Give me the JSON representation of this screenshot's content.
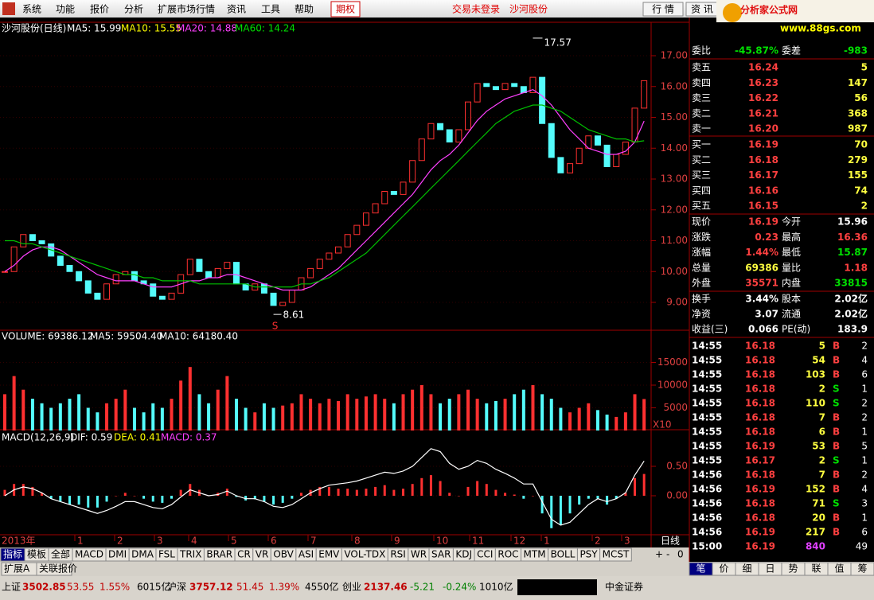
{
  "menu": {
    "items": [
      "系统",
      "功能",
      "报价",
      "分析",
      "扩展市场行情",
      "资讯",
      "工具",
      "帮助"
    ],
    "option": "期权",
    "login": "交易未登录",
    "stock": "沙河股份",
    "buttons": [
      "行 情",
      "资 讯"
    ],
    "logo": "分析家公式网",
    "site": "www.88gs.com"
  },
  "price_chart": {
    "type": "candlestick",
    "title": "沙河股份(日线)",
    "indicators": [
      "MA5: 15.99",
      "MA10: 15.55",
      "MA20: 14.88",
      "MA60: 14.24"
    ],
    "closes": [
      10.0,
      10.8,
      11.2,
      11.0,
      10.9,
      10.5,
      10.2,
      10.0,
      9.7,
      9.3,
      9.1,
      9.6,
      9.9,
      10.0,
      9.7,
      9.6,
      9.2,
      9.1,
      9.3,
      9.9,
      10.4,
      10.0,
      9.8,
      10.1,
      10.3,
      9.6,
      9.4,
      9.6,
      9.3,
      8.9,
      9.0,
      9.4,
      9.8,
      10.1,
      10.4,
      10.6,
      10.8,
      11.2,
      11.5,
      11.9,
      12.2,
      12.6,
      12.5,
      12.9,
      13.6,
      14.3,
      14.8,
      14.6,
      14.2,
      14.6,
      15.5,
      16.1,
      16.0,
      15.9,
      16.1,
      16.0,
      15.8,
      16.3,
      14.8,
      13.7,
      13.2,
      13.5,
      14.0,
      14.4,
      14.1,
      13.4,
      13.8,
      14.2,
      15.3,
      16.19
    ],
    "series": [
      {
        "color": "#ff40ff",
        "values": [
          10.0,
          10.2,
          10.5,
          10.7,
          10.8,
          10.8,
          10.7,
          10.5,
          10.3,
          10.1,
          9.9,
          9.8,
          9.7,
          9.7,
          9.7,
          9.6,
          9.5,
          9.5,
          9.5,
          9.6,
          9.7,
          9.7,
          9.8,
          9.8,
          9.9,
          9.9,
          9.8,
          9.7,
          9.6,
          9.5,
          9.4,
          9.4,
          9.4,
          9.5,
          9.7,
          9.9,
          10.1,
          10.4,
          10.7,
          11.0,
          11.3,
          11.6,
          11.9,
          12.2,
          12.5,
          12.9,
          13.3,
          13.6,
          13.8,
          14.1,
          14.5,
          14.9,
          15.2,
          15.4,
          15.6,
          15.7,
          15.8,
          15.9,
          15.7,
          15.4,
          15.0,
          14.6,
          14.3,
          14.0,
          13.9,
          13.8,
          13.8,
          13.9,
          14.2,
          14.88
        ]
      },
      {
        "color": "#00c000",
        "values": [
          11.0,
          11.0,
          10.9,
          10.9,
          10.8,
          10.7,
          10.6,
          10.5,
          10.4,
          10.3,
          10.2,
          10.1,
          10.0,
          9.9,
          9.9,
          9.8,
          9.8,
          9.7,
          9.7,
          9.7,
          9.7,
          9.6,
          9.6,
          9.6,
          9.6,
          9.6,
          9.6,
          9.5,
          9.5,
          9.5,
          9.5,
          9.5,
          9.6,
          9.6,
          9.7,
          9.8,
          10.0,
          10.2,
          10.4,
          10.6,
          10.9,
          11.2,
          11.5,
          11.8,
          12.1,
          12.4,
          12.7,
          13.0,
          13.3,
          13.6,
          13.9,
          14.2,
          14.5,
          14.8,
          15.0,
          15.2,
          15.3,
          15.4,
          15.4,
          15.3,
          15.2,
          15.0,
          14.8,
          14.6,
          14.5,
          14.4,
          14.3,
          14.3,
          14.2,
          14.24
        ]
      }
    ],
    "ylim": [
      8.0,
      18.0
    ],
    "yticks": [
      {
        "value": 9,
        "label": "9.00"
      },
      {
        "value": 10,
        "label": "10.00"
      },
      {
        "value": 11,
        "label": "11.00"
      },
      {
        "value": 12,
        "label": "12.00"
      },
      {
        "value": 13,
        "label": "13.00"
      },
      {
        "value": 14,
        "label": "14.00"
      },
      {
        "value": 15,
        "label": "15.00"
      },
      {
        "value": 16,
        "label": "16.00"
      },
      {
        "value": 17,
        "label": "17.00"
      }
    ],
    "high": 17.57,
    "low": 8.61,
    "signal": "S"
  },
  "volume_chart": {
    "type": "bar",
    "indicators": [
      "VOLUME: 69386.12",
      "MA5: 59504.40",
      "MA10: 64180.40"
    ],
    "values": [
      8000,
      12000,
      9000,
      7000,
      6000,
      5000,
      6000,
      7000,
      8000,
      5000,
      4000,
      6000,
      7000,
      9000,
      5000,
      4000,
      6000,
      5000,
      7000,
      11000,
      14000,
      8000,
      6000,
      9000,
      12000,
      7000,
      5000,
      4000,
      6000,
      5000,
      5500,
      6000,
      8000,
      7000,
      6000,
      7000,
      6500,
      8000,
      7000,
      7500,
      8000,
      7000,
      6000,
      8000,
      9000,
      10000,
      8000,
      6000,
      7000,
      8000,
      9000,
      7000,
      6000,
      6500,
      7000,
      8000,
      9000,
      10000,
      8000,
      7000,
      5000,
      4000,
      5000,
      6000,
      4500,
      3500,
      3000,
      4000,
      8000,
      6938.6
    ],
    "yticks": [
      5000,
      10000,
      15000
    ],
    "unit": "X10"
  },
  "macd_chart": {
    "type": "bar",
    "indicators": [
      "MACD(12,26,9)",
      "DIF: 0.59",
      "DEA: 0.41",
      "MACD: 0.37"
    ],
    "values": [
      0.1,
      0.2,
      0.2,
      0.15,
      0.05,
      -0.05,
      -0.1,
      -0.15,
      -0.15,
      -0.2,
      -0.2,
      -0.1,
      0,
      0.05,
      0,
      -0.05,
      -0.1,
      -0.12,
      -0.05,
      0.1,
      0.2,
      0.1,
      0,
      0.05,
      0.12,
      -0.02,
      -0.08,
      -0.06,
      -0.1,
      -0.15,
      -0.12,
      -0.05,
      0.05,
      0.1,
      0.15,
      0.15,
      0.12,
      0.12,
      0.1,
      0.12,
      0.15,
      0.18,
      0.1,
      0.12,
      0.2,
      0.3,
      0.35,
      0.25,
      0.05,
      0,
      0.15,
      0.25,
      0.2,
      0.1,
      0.05,
      0.02,
      -0.05,
      0,
      -0.3,
      -0.55,
      -0.5,
      -0.3,
      -0.15,
      -0.05,
      -0.05,
      -0.15,
      -0.05,
      0.05,
      0.3,
      0.37
    ],
    "dif": [
      0.0,
      0.1,
      0.15,
      0.12,
      0.05,
      -0.05,
      -0.1,
      -0.15,
      -0.2,
      -0.25,
      -0.3,
      -0.25,
      -0.18,
      -0.1,
      -0.1,
      -0.15,
      -0.2,
      -0.22,
      -0.15,
      -0.02,
      0.1,
      0.05,
      0,
      0.02,
      0.08,
      0,
      -0.05,
      -0.05,
      -0.1,
      -0.18,
      -0.2,
      -0.15,
      -0.05,
      0.05,
      0.12,
      0.18,
      0.2,
      0.22,
      0.25,
      0.3,
      0.35,
      0.4,
      0.38,
      0.42,
      0.5,
      0.65,
      0.8,
      0.75,
      0.55,
      0.45,
      0.5,
      0.6,
      0.55,
      0.45,
      0.38,
      0.3,
      0.2,
      0.2,
      -0.1,
      -0.4,
      -0.5,
      -0.45,
      -0.3,
      -0.15,
      -0.05,
      -0.1,
      -0.05,
      0.05,
      0.35,
      0.59
    ],
    "yticks": [
      {
        "value": 0,
        "label": "0.00"
      },
      {
        "value": 0.5,
        "label": "0.50"
      }
    ]
  },
  "x_axis": {
    "labels": [
      "2013年",
      "1",
      "2",
      "3",
      "4",
      "5",
      "6",
      "7",
      "8",
      "9",
      "10",
      "11",
      "12",
      "1",
      "2",
      "3"
    ],
    "period": "日线"
  },
  "tabs": [
    "指标",
    "模板",
    "全部",
    "MACD",
    "DMI",
    "DMA",
    "FSL",
    "TRIX",
    "BRAR",
    "CR",
    "VR",
    "OBV",
    "ASI",
    "EMV",
    "VOL-TDX",
    "RSI",
    "WR",
    "SAR",
    "KDJ",
    "CCI",
    "ROC",
    "MTM",
    "BOLL",
    "PSY",
    "MCST"
  ],
  "zoom": [
    "+",
    "-",
    "0"
  ],
  "bottom_tabs": [
    "扩展A",
    "关联报价"
  ],
  "quote": {
    "ratio": [
      "委比",
      "-45.87%",
      "委差",
      "-983"
    ],
    "sell": [
      [
        "卖五",
        "16.24",
        "5"
      ],
      [
        "卖四",
        "16.23",
        "147"
      ],
      [
        "卖三",
        "16.22",
        "56"
      ],
      [
        "卖二",
        "16.21",
        "368"
      ],
      [
        "卖一",
        "16.20",
        "987"
      ]
    ],
    "buy": [
      [
        "买一",
        "16.19",
        "70"
      ],
      [
        "买二",
        "16.18",
        "279"
      ],
      [
        "买三",
        "16.17",
        "155"
      ],
      [
        "买四",
        "16.16",
        "74"
      ],
      [
        "买五",
        "16.15",
        "2"
      ]
    ],
    "stats": [
      [
        "现价",
        "16.19",
        "今开",
        "15.96"
      ],
      [
        "涨跌",
        "0.23",
        "最高",
        "16.36"
      ],
      [
        "涨幅",
        "1.44%",
        "最低",
        "15.87"
      ],
      [
        "总量",
        "69386",
        "量比",
        "1.18"
      ],
      [
        "外盘",
        "35571",
        "内盘",
        "33815"
      ]
    ],
    "extra": [
      [
        "换手",
        "3.44%",
        "股本",
        "2.02亿"
      ],
      [
        "净资",
        "3.07",
        "流通",
        "2.02亿"
      ],
      [
        "收益(三)",
        "0.066",
        "PE(动)",
        "183.9"
      ]
    ],
    "ticks": [
      {
        "time": "14:55",
        "price": "16.18",
        "volume": "5",
        "side": "B",
        "count": "2"
      },
      {
        "time": "14:55",
        "price": "16.18",
        "volume": "54",
        "side": "B",
        "count": "4"
      },
      {
        "time": "14:55",
        "price": "16.18",
        "volume": "103",
        "side": "B",
        "count": "6"
      },
      {
        "time": "14:55",
        "price": "16.18",
        "volume": "2",
        "side": "S",
        "count": "1"
      },
      {
        "time": "14:55",
        "price": "16.18",
        "volume": "110",
        "side": "S",
        "count": "2"
      },
      {
        "time": "14:55",
        "price": "16.18",
        "volume": "7",
        "side": "B",
        "count": "2"
      },
      {
        "time": "14:55",
        "price": "16.18",
        "volume": "6",
        "side": "B",
        "count": "1"
      },
      {
        "time": "14:55",
        "price": "16.19",
        "volume": "53",
        "side": "B",
        "count": "5"
      },
      {
        "time": "14:55",
        "price": "16.17",
        "volume": "2",
        "side": "S",
        "count": "1"
      },
      {
        "time": "14:56",
        "price": "16.18",
        "volume": "7",
        "side": "B",
        "count": "2"
      },
      {
        "time": "14:56",
        "price": "16.19",
        "volume": "152",
        "side": "B",
        "count": "4"
      },
      {
        "time": "14:56",
        "price": "16.18",
        "volume": "71",
        "side": "S",
        "count": "3"
      },
      {
        "time": "14:56",
        "price": "16.18",
        "volume": "20",
        "side": "B",
        "count": "1"
      },
      {
        "time": "14:56",
        "price": "16.19",
        "volume": "217",
        "side": "B",
        "count": "6"
      },
      {
        "time": "15:00",
        "price": "16.19",
        "volume": "840",
        "count": "49"
      }
    ],
    "tabs": [
      "笔",
      "价",
      "细",
      "日",
      "势",
      "联",
      "值",
      "筹"
    ]
  },
  "status": {
    "items": [
      "上证",
      "3502.85",
      "53.55",
      "1.55%",
      "6015亿",
      "沪深",
      "3757.12",
      "51.45",
      "1.39%",
      "4550亿",
      "创业",
      "2137.46",
      "-5.21",
      "-0.24%",
      "1010亿"
    ],
    "broker": "中金证券"
  }
}
